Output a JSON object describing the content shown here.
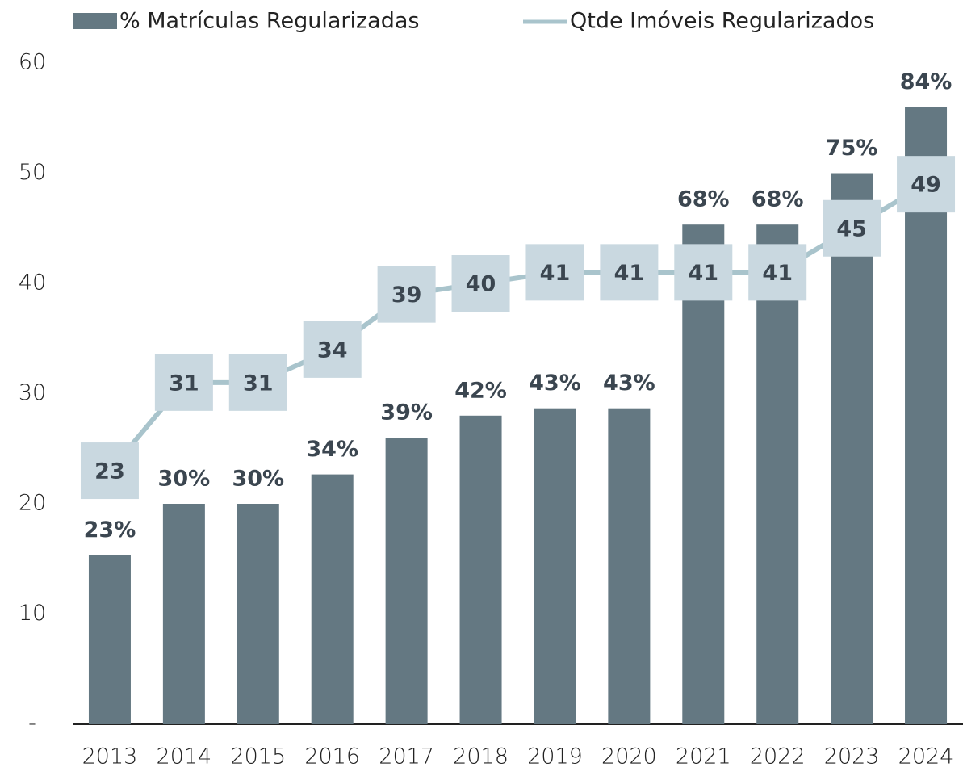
{
  "chart_data": {
    "type": "bar-line",
    "categories": [
      "2013",
      "2014",
      "2015",
      "2016",
      "2017",
      "2018",
      "2019",
      "2020",
      "2021",
      "2022",
      "2023",
      "2024"
    ],
    "series": [
      {
        "name": "% Matrículas Regularizadas",
        "type": "bar",
        "axis": "y2",
        "color": "#647882",
        "values": [
          23,
          30,
          30,
          34,
          39,
          42,
          43,
          43,
          68,
          68,
          75,
          84
        ],
        "value_labels": [
          "23%",
          "30%",
          "30%",
          "34%",
          "39%",
          "42%",
          "43%",
          "43%",
          "68%",
          "68%",
          "75%",
          "84%"
        ]
      },
      {
        "name": "Qtde Imóveis Regularizados",
        "type": "line",
        "axis": "y",
        "color": "#a9c4cc",
        "values": [
          23,
          31,
          31,
          34,
          39,
          40,
          41,
          41,
          41,
          41,
          45,
          49
        ]
      }
    ],
    "ylim": [
      0,
      60
    ],
    "yticks": [
      {
        "value": 0,
        "label": "-"
      },
      10,
      20,
      30,
      40,
      50,
      60
    ],
    "y2lim": [
      0,
      90
    ],
    "legend": "top"
  }
}
